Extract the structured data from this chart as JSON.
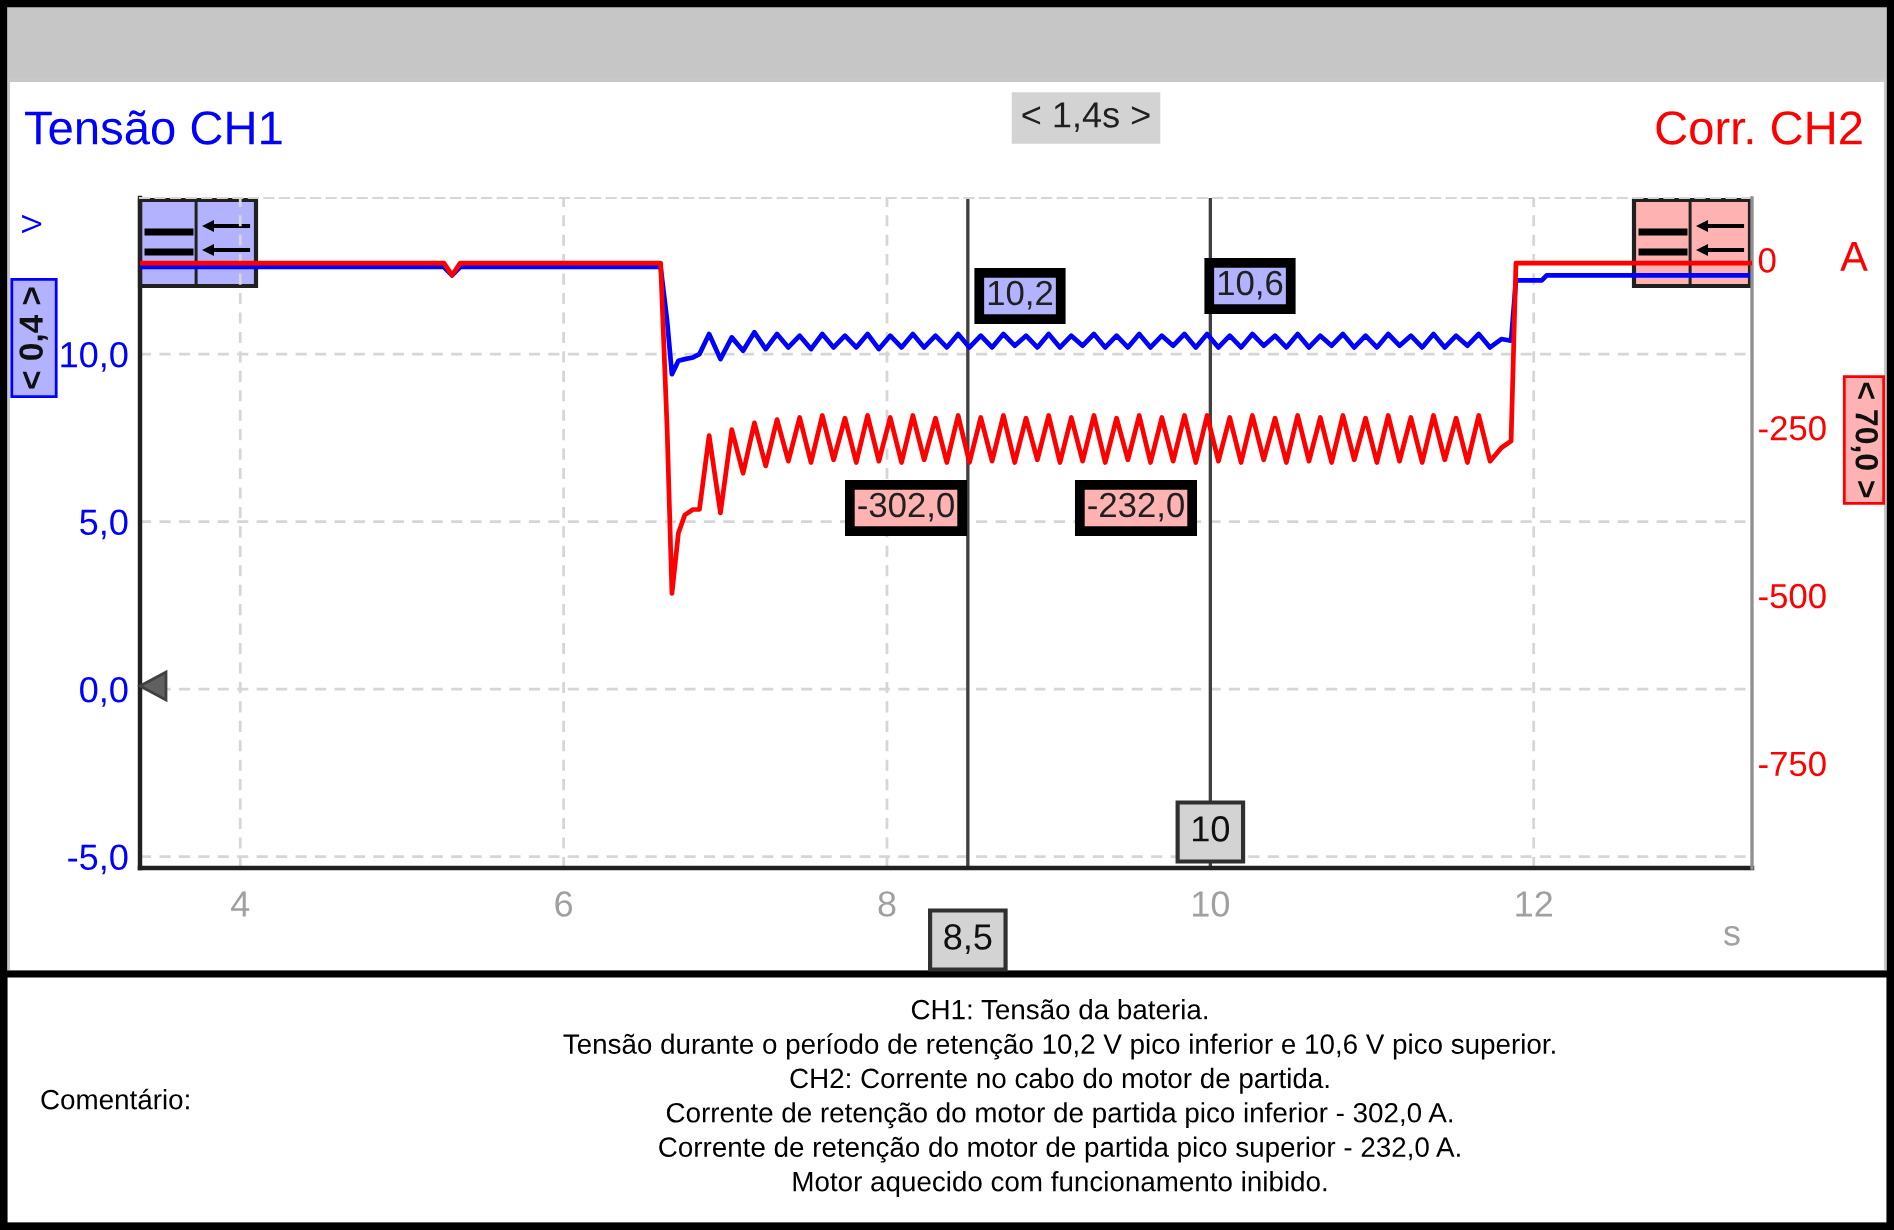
{
  "chart_data": {
    "type": "line",
    "ylabel": "Tensão CH1",
    "y2label": "Corr. CH2",
    "xlabel": "s",
    "x": [
      3.38,
      5.26,
      5.31,
      5.36,
      6.6,
      6.64,
      6.67,
      6.71,
      6.75,
      6.8,
      6.84,
      6.9,
      6.97,
      7.04,
      7.11,
      7.18,
      7.25,
      7.32,
      7.39,
      7.46,
      7.53,
      7.6,
      7.67,
      7.74,
      7.81,
      7.88,
      7.95,
      8.02,
      8.09,
      8.16,
      8.23,
      8.3,
      8.37,
      8.44,
      8.51,
      8.58,
      8.65,
      8.72,
      8.79,
      8.86,
      8.93,
      9.0,
      9.07,
      9.14,
      9.21,
      9.28,
      9.35,
      9.42,
      9.49,
      9.56,
      9.63,
      9.7,
      9.77,
      9.84,
      9.91,
      9.98,
      10.05,
      10.12,
      10.19,
      10.26,
      10.33,
      10.4,
      10.47,
      10.54,
      10.61,
      10.68,
      10.75,
      10.82,
      10.89,
      10.96,
      11.03,
      11.1,
      11.17,
      11.24,
      11.31,
      11.38,
      11.45,
      11.52,
      11.59,
      11.66,
      11.73,
      11.8,
      11.86,
      11.89,
      12.05,
      12.08,
      13.35
    ],
    "series": [
      {
        "color": "#0000ff",
        "values": [
          12.6,
          12.6,
          12.35,
          12.6,
          12.6,
          11.0,
          9.4,
          9.8,
          9.85,
          9.9,
          10.0,
          10.6,
          9.85,
          10.5,
          10.1,
          10.65,
          10.15,
          10.6,
          10.2,
          10.55,
          10.15,
          10.6,
          10.2,
          10.55,
          10.2,
          10.6,
          10.15,
          10.55,
          10.2,
          10.6,
          10.2,
          10.55,
          10.2,
          10.6,
          10.2,
          10.55,
          10.2,
          10.6,
          10.25,
          10.55,
          10.2,
          10.6,
          10.2,
          10.55,
          10.25,
          10.6,
          10.2,
          10.55,
          10.2,
          10.6,
          10.2,
          10.55,
          10.25,
          10.6,
          10.2,
          10.6,
          10.2,
          10.55,
          10.2,
          10.6,
          10.25,
          10.55,
          10.2,
          10.6,
          10.2,
          10.55,
          10.25,
          10.6,
          10.2,
          10.55,
          10.2,
          10.6,
          10.25,
          10.55,
          10.2,
          10.6,
          10.2,
          10.55,
          10.25,
          10.6,
          10.2,
          10.45,
          10.4,
          12.2,
          12.2,
          12.35,
          12.35
        ]
      },
      {
        "color": "#ff0000",
        "axis": "y2",
        "values": [
          -5,
          -5,
          -23,
          -5,
          -5,
          -250,
          -497,
          -407,
          -380,
          -372,
          -372,
          -262,
          -377,
          -253,
          -318,
          -243,
          -307,
          -238,
          -300,
          -235,
          -302,
          -232,
          -298,
          -236,
          -302,
          -232,
          -300,
          -235,
          -302,
          -232,
          -298,
          -236,
          -302,
          -232,
          -302,
          -235,
          -300,
          -232,
          -302,
          -236,
          -298,
          -232,
          -302,
          -235,
          -300,
          -232,
          -302,
          -236,
          -298,
          -232,
          -302,
          -235,
          -300,
          -232,
          -302,
          -232,
          -300,
          -235,
          -302,
          -232,
          -298,
          -236,
          -302,
          -232,
          -300,
          -235,
          -302,
          -232,
          -298,
          -236,
          -302,
          -232,
          -300,
          -235,
          -302,
          -232,
          -298,
          -236,
          -302,
          -232,
          -300,
          -280,
          -270,
          -5,
          -5,
          -5,
          -5
        ]
      }
    ],
    "xlim": [
      3.38,
      13.35
    ],
    "xticks": [
      4,
      6,
      8,
      10,
      12
    ],
    "ylim": [
      -5.34,
      14.66
    ],
    "yticks": [
      {
        "value": -5,
        "label": "-5,0"
      },
      {
        "value": 0,
        "label": "0,0"
      },
      {
        "value": 5,
        "label": "5,0"
      },
      {
        "value": 10,
        "label": "10,0"
      }
    ],
    "y2lim": [
      -906,
      92
    ],
    "y2ticks": [
      -750,
      -500,
      -250,
      0
    ],
    "grid": true,
    "ref_lines": [
      {
        "axis": "x",
        "value": 8.5,
        "label": "8,5",
        "color": "#404040"
      },
      {
        "axis": "x",
        "value": 10,
        "label": "10",
        "color": "#404040"
      }
    ],
    "annotations": [
      "10,2",
      "10,6",
      "-302,0",
      "-232,0",
      "< 1,4s >",
      "V",
      "< 0,4 >",
      "A",
      "< 70,0 >",
      "Comentário:",
      "CH1: Tensão da bateria.",
      "Tensão durante o período de retenção 10,2 V pico inferior e 10,6 V pico superior.",
      "CH2: Corrente no cabo do motor de partida.",
      "Corrente de retenção do motor de partida pico inferior - 302,0 A.",
      "Corrente de retenção do motor de partida pico superior - 232,0 A.",
      "Motor aquecido com funcionamento inibido."
    ]
  }
}
